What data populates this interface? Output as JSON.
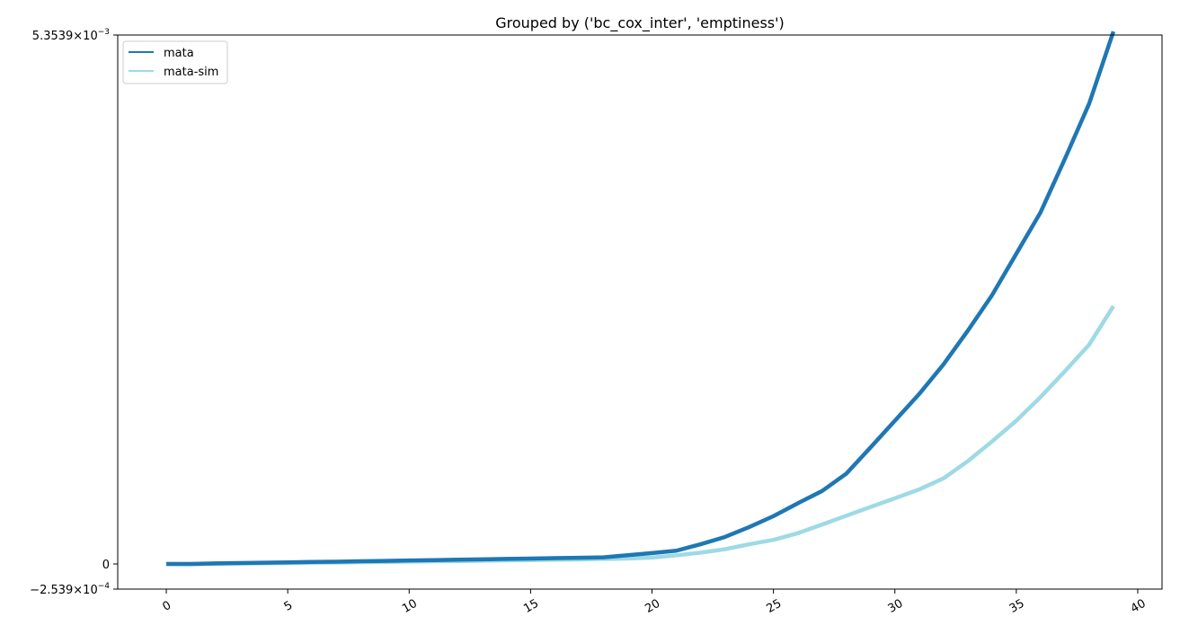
{
  "chart_data": {
    "type": "line",
    "title": "Grouped by ('bc_cox_inter', 'emptiness')",
    "xlabel": "",
    "ylabel": "",
    "xlim": [
      -2,
      41
    ],
    "ylim": [
      -0.0002539,
      0.0053539
    ],
    "y_scale": "symlog",
    "x_ticks": [
      0,
      5,
      10,
      15,
      20,
      25,
      30,
      35,
      40
    ],
    "y_ticks": [
      {
        "value": 0.0053539,
        "mantissa": "5.3539",
        "exp": "-3"
      },
      {
        "value": 0,
        "label": "0"
      },
      {
        "value": -0.0002539,
        "mantissa": "−2.539",
        "exp": "-4"
      }
    ],
    "x_tick_rotation": 30,
    "grid": false,
    "legend_position": "upper left",
    "x": [
      0,
      1,
      2,
      3,
      4,
      5,
      6,
      7,
      8,
      9,
      10,
      11,
      12,
      13,
      14,
      15,
      16,
      17,
      18,
      19,
      20,
      21,
      22,
      23,
      24,
      25,
      26,
      27,
      28,
      29,
      30,
      31,
      32,
      33,
      34,
      35,
      36,
      37,
      38,
      39
    ],
    "series": [
      {
        "name": "mata",
        "color": "#1f77b4",
        "values": [
          0,
          0,
          6e-06,
          9e-06,
          1.2e-05,
          1.6e-05,
          2e-05,
          2.3e-05,
          2.7e-05,
          3.1e-05,
          3.5e-05,
          3.9e-05,
          4.3e-05,
          4.7e-05,
          5.1e-05,
          5.5e-05,
          5.9e-05,
          6.3e-05,
          6.7e-05,
          8.9e-05,
          0.00011,
          0.000134,
          0.0001996,
          0.000273,
          0.000373,
          0.000484,
          0.000614,
          0.000738,
          0.000914,
          0.00118,
          0.00145,
          0.00172,
          0.00202,
          0.00236,
          0.00272,
          0.00314,
          0.00356,
          0.0041,
          0.00466,
          0.00539
        ]
      },
      {
        "name": "mata-sim",
        "color": "#9edae5",
        "values": [
          0,
          -2e-06,
          2e-06,
          4e-06,
          7e-06,
          9e-06,
          1.2e-05,
          1.5e-05,
          1.8e-05,
          2.1e-05,
          2.4e-05,
          2.7e-05,
          3e-05,
          3.3e-05,
          3.6e-05,
          3.9e-05,
          4.2e-05,
          4.6e-05,
          5e-05,
          5.5e-05,
          6.5e-05,
          8.7e-05,
          0.000115,
          0.000149,
          0.0001996,
          0.000244,
          0.000311,
          0.000399,
          0.000488,
          0.000577,
          0.000665,
          0.000754,
          0.000866,
          0.00104,
          0.00124,
          0.00145,
          0.00169,
          0.00195,
          0.00222,
          0.00261
        ]
      }
    ]
  }
}
